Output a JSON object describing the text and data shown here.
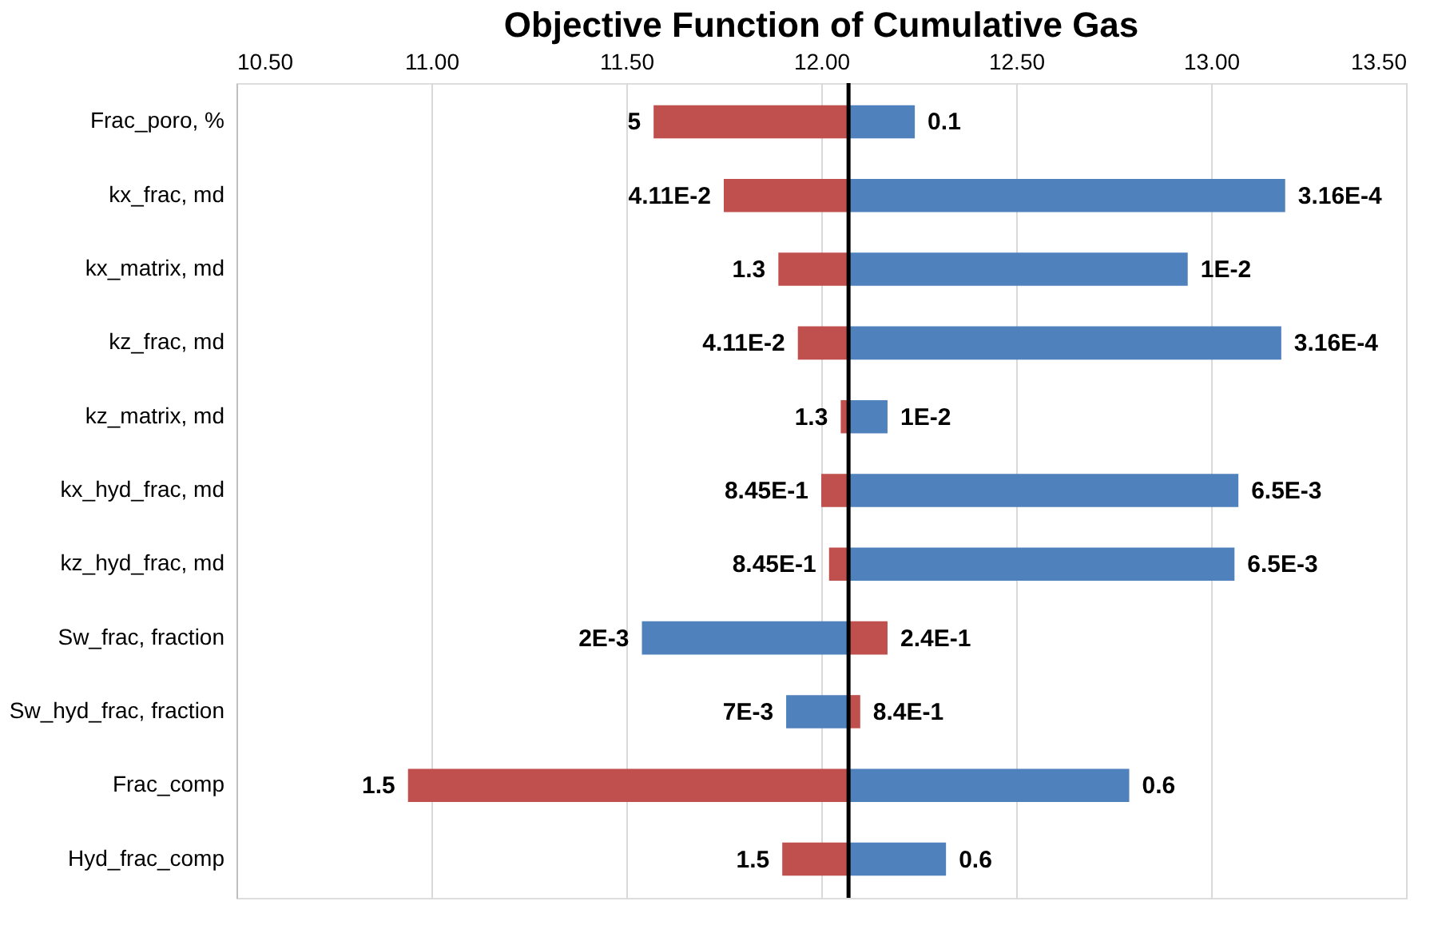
{
  "chart_data": {
    "type": "bar",
    "orientation": "horizontal",
    "title": "Objective Function of Cumulative Gas",
    "categories": [
      "Frac_poro, %",
      "kx_frac, md",
      "kx_matrix, md",
      "kz_frac, md",
      "kz_matrix, md",
      "kx_hyd_frac, md",
      "kz_hyd_frac, md",
      "Sw_frac, fraction",
      "Sw_hyd_frac, fraction",
      "Frac_comp",
      "Hyd_frac_comp"
    ],
    "series": [
      {
        "color": "#c0504d",
        "base": [
          12.07,
          12.07,
          12.07,
          12.07,
          12.07,
          12.07,
          12.07,
          12.07,
          12.07,
          12.07,
          12.07
        ],
        "values": [
          -0.5,
          -0.32,
          -0.18,
          -0.13,
          -0.02,
          -0.07,
          -0.05,
          0.1,
          0.03,
          -1.13,
          -0.17
        ]
      },
      {
        "color": "#4f81bd",
        "base": [
          12.07,
          12.07,
          12.07,
          12.07,
          12.07,
          12.07,
          12.07,
          12.07,
          12.07,
          12.07,
          12.07
        ],
        "values": [
          0.17,
          1.12,
          0.87,
          1.11,
          0.1,
          1.0,
          0.99,
          -0.53,
          -0.16,
          0.72,
          0.25
        ]
      }
    ],
    "annotations": [
      {
        "text": "5",
        "x": 11.57,
        "y": "Frac_poro, %"
      },
      {
        "text": "0.1",
        "x": 12.24,
        "y": "Frac_poro, %"
      },
      {
        "text": "4.11E-2",
        "x": 11.75,
        "y": "kx_frac, md"
      },
      {
        "text": "3.16E-4",
        "x": 13.19,
        "y": "kx_frac, md"
      },
      {
        "text": "1.3",
        "x": 11.89,
        "y": "kx_matrix, md"
      },
      {
        "text": "1E-2",
        "x": 12.94,
        "y": "kx_matrix, md"
      },
      {
        "text": "4.11E-2",
        "x": 11.94,
        "y": "kz_frac, md"
      },
      {
        "text": "3.16E-4",
        "x": 13.18,
        "y": "kz_frac, md"
      },
      {
        "text": "1.3",
        "x": 12.05,
        "y": "kz_matrix, md"
      },
      {
        "text": "1E-2",
        "x": 12.17,
        "y": "kz_matrix, md"
      },
      {
        "text": "8.45E-1",
        "x": 12.0,
        "y": "kx_hyd_frac, md"
      },
      {
        "text": "6.5E-3",
        "x": 13.07,
        "y": "kx_hyd_frac, md"
      },
      {
        "text": "8.45E-1",
        "x": 12.02,
        "y": "kz_hyd_frac, md"
      },
      {
        "text": "6.5E-3",
        "x": 13.06,
        "y": "kz_hyd_frac, md"
      },
      {
        "text": "2E-3",
        "x": 11.54,
        "y": "Sw_frac, fraction"
      },
      {
        "text": "2.4E-1",
        "x": 12.17,
        "y": "Sw_frac, fraction"
      },
      {
        "text": "7E-3",
        "x": 11.91,
        "y": "Sw_hyd_frac, fraction"
      },
      {
        "text": "8.4E-1",
        "x": 12.1,
        "y": "Sw_hyd_frac, fraction"
      },
      {
        "text": "1.5",
        "x": 10.94,
        "y": "Frac_comp"
      },
      {
        "text": "0.6",
        "x": 12.79,
        "y": "Frac_comp"
      },
      {
        "text": "1.5",
        "x": 11.9,
        "y": "Hyd_frac_comp"
      },
      {
        "text": "0.6",
        "x": 12.32,
        "y": "Hyd_frac_comp"
      }
    ],
    "xlim": [
      10.5,
      13.5
    ],
    "xticks": [
      {
        "value": 10.5,
        "label": "10.50"
      },
      {
        "value": 11,
        "label": "11.00"
      },
      {
        "value": 11.5,
        "label": "11.50"
      },
      {
        "value": 12,
        "label": "12.00"
      },
      {
        "value": 12.5,
        "label": "12.50"
      },
      {
        "value": 13,
        "label": "13.00"
      },
      {
        "value": 13.5,
        "label": "13.50"
      }
    ],
    "ref_lines": [
      {
        "axis": "x",
        "value": 12.07,
        "color": "#000000"
      }
    ],
    "grid": "x"
  }
}
